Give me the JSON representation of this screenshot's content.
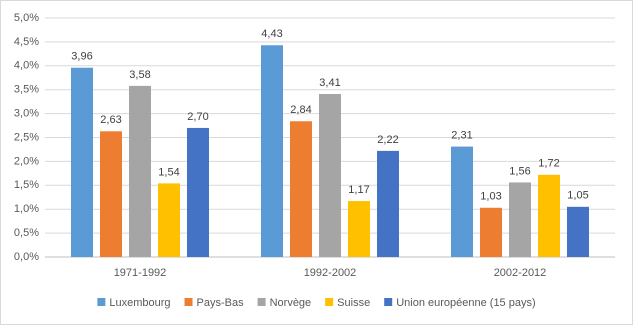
{
  "chart_data": {
    "type": "bar",
    "categories": [
      "1971-1992",
      "1992-2002",
      "2002-2012"
    ],
    "series": [
      {
        "name": "Luxembourg",
        "color": "#5b9bd5",
        "values": [
          3.96,
          4.43,
          2.31
        ],
        "value_labels": [
          "3,96",
          "4,43",
          "2,31"
        ]
      },
      {
        "name": "Pays-Bas",
        "color": "#ed7d31",
        "values": [
          2.63,
          2.84,
          1.03
        ],
        "value_labels": [
          "2,63",
          "2,84",
          "1,03"
        ]
      },
      {
        "name": "Norvège",
        "color": "#a5a5a5",
        "values": [
          3.58,
          3.41,
          1.56
        ],
        "value_labels": [
          "3,58",
          "3,41",
          "1,56"
        ]
      },
      {
        "name": "Suisse",
        "color": "#ffc000",
        "values": [
          1.54,
          1.17,
          1.72
        ],
        "value_labels": [
          "1,54",
          "1,17",
          "1,72"
        ]
      },
      {
        "name": "Union européenne (15 pays)",
        "color": "#4472c4",
        "values": [
          2.7,
          2.22,
          1.05
        ],
        "value_labels": [
          "2,70",
          "2,22",
          "1,05"
        ]
      }
    ],
    "ylim": [
      0,
      5
    ],
    "yticks": [
      {
        "value": 0,
        "label": "0,0%"
      },
      {
        "value": 0.5,
        "label": "0,5%"
      },
      {
        "value": 1,
        "label": "1,0%"
      },
      {
        "value": 1.5,
        "label": "1,5%"
      },
      {
        "value": 2,
        "label": "2,0%"
      },
      {
        "value": 2.5,
        "label": "2,5%"
      },
      {
        "value": 3,
        "label": "3,0%"
      },
      {
        "value": 3.5,
        "label": "3,5%"
      },
      {
        "value": 4,
        "label": "4,0%"
      },
      {
        "value": 4.5,
        "label": "4,5%"
      },
      {
        "value": 5,
        "label": "5,0%"
      }
    ],
    "grid": true,
    "legend": "bottom"
  }
}
